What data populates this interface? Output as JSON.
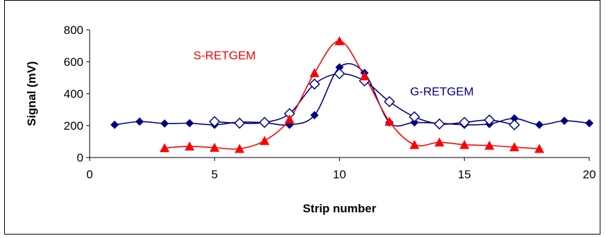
{
  "chart_data": {
    "type": "scatter",
    "title": "",
    "xlabel": "Strip number",
    "ylabel": "Signal (mV)",
    "xlim": [
      0,
      20
    ],
    "ylim": [
      0,
      800
    ],
    "xticks": [
      "0",
      "5",
      "10",
      "15",
      "20"
    ],
    "yticks": [
      "0",
      "200",
      "400",
      "600",
      "800"
    ],
    "grid": false,
    "annotations": [
      {
        "text": "S-RETGEM",
        "color": "#ff0000",
        "x": 5.4,
        "y": 615
      },
      {
        "text": "G-RETGEM",
        "color": "#000080",
        "x": 14.1,
        "y": 390
      }
    ],
    "series": [
      {
        "color": "#ff0000",
        "marker": "triangle",
        "x": [
          3,
          4,
          5,
          6,
          7,
          8,
          9,
          10,
          11,
          12,
          13,
          14,
          15,
          16,
          17,
          18
        ],
        "y": [
          60,
          70,
          62,
          55,
          105,
          240,
          530,
          730,
          510,
          225,
          80,
          95,
          80,
          75,
          65,
          55
        ]
      },
      {
        "color": "#000080",
        "marker": "filled-diamond",
        "x": [
          1,
          2,
          3,
          4,
          5,
          6,
          7,
          8,
          9,
          10,
          11,
          12,
          13,
          14,
          15,
          16,
          17,
          18,
          19,
          20
        ],
        "y": [
          205,
          225,
          213,
          215,
          205,
          222,
          218,
          205,
          265,
          565,
          530,
          220,
          220,
          215,
          205,
          210,
          245,
          205,
          230,
          215
        ]
      },
      {
        "color": "#000080",
        "marker": "open-diamond",
        "x": [
          5,
          6,
          7,
          8,
          9,
          10,
          11,
          12,
          13,
          14,
          15,
          16,
          17
        ],
        "y": [
          225,
          215,
          220,
          275,
          460,
          525,
          480,
          350,
          255,
          210,
          220,
          235,
          205
        ]
      }
    ]
  }
}
